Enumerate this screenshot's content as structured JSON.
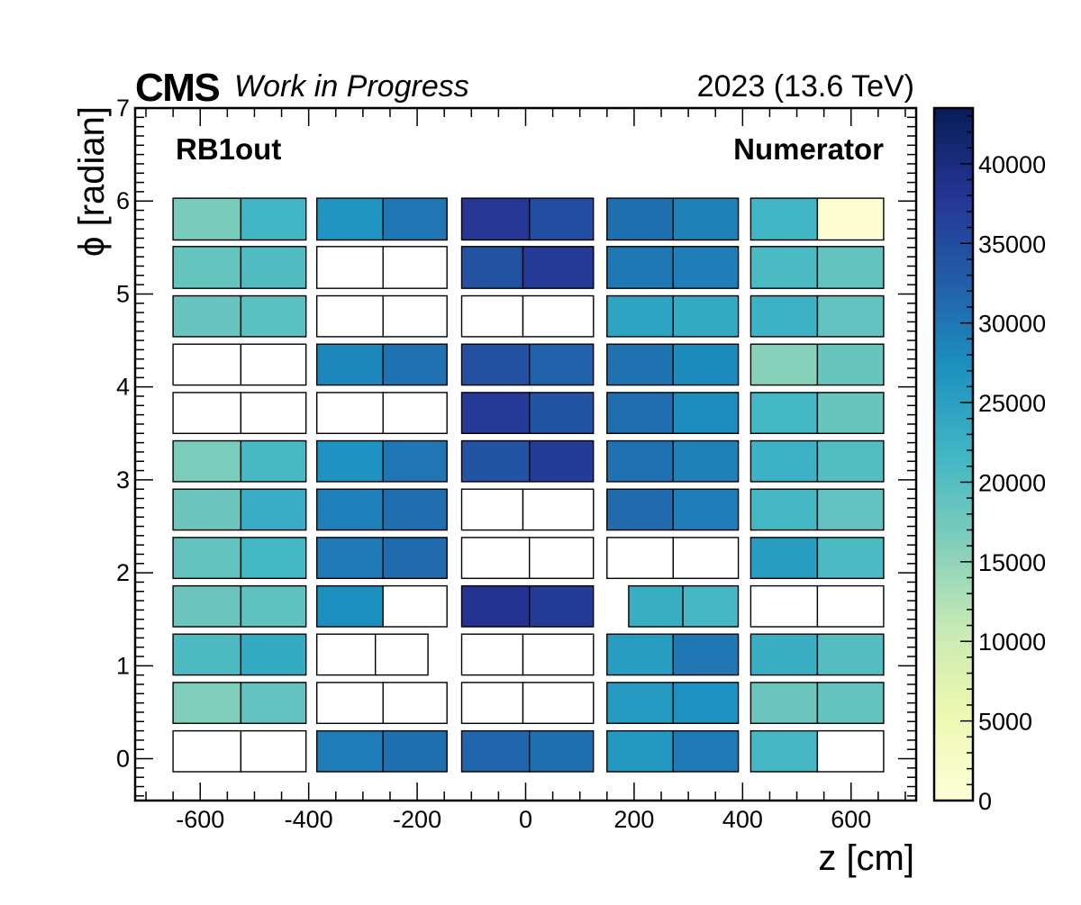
{
  "chart_data": {
    "type": "heatmap",
    "header": {
      "experiment": "CMS",
      "status": "Work in Progress",
      "run_info": "2023 (13.6 TeV)"
    },
    "labels": {
      "region": "RB1out",
      "quantity": "Numerator"
    },
    "xlabel": "z [cm]",
    "ylabel": "ϕ [radian]",
    "xlim": [
      -720,
      720
    ],
    "ylim": [
      -0.45,
      7
    ],
    "x_ticks": [
      -600,
      -400,
      -200,
      0,
      200,
      400,
      600
    ],
    "y_ticks": [
      0,
      1,
      2,
      3,
      4,
      5,
      6,
      7
    ],
    "colorbar": {
      "range": [
        0,
        43500
      ],
      "ticks": [
        0,
        5000,
        10000,
        15000,
        20000,
        25000,
        30000,
        35000,
        40000
      ],
      "colormap": "YlGnBu",
      "colormap_stops": [
        "#ffffd9",
        "#edf8b1",
        "#c7e9b4",
        "#7fcdbb",
        "#41b6c4",
        "#1d91c0",
        "#225ea8",
        "#253494",
        "#081d58"
      ]
    },
    "cells": [
      {
        "x": [
          -650,
          -525
        ],
        "y": [
          5.58,
          6.03
        ],
        "value": 16800
      },
      {
        "x": [
          -525,
          -405
        ],
        "y": [
          5.58,
          6.03
        ],
        "value": 21800
      },
      {
        "x": [
          -385,
          -263
        ],
        "y": [
          5.58,
          6.03
        ],
        "value": 26800
      },
      {
        "x": [
          -263,
          -145
        ],
        "y": [
          5.58,
          6.03
        ],
        "value": 30200
      },
      {
        "x": [
          -118,
          7
        ],
        "y": [
          5.58,
          6.03
        ],
        "value": 37800
      },
      {
        "x": [
          7,
          125
        ],
        "y": [
          5.58,
          6.03
        ],
        "value": 34800
      },
      {
        "x": [
          150,
          272
        ],
        "y": [
          5.58,
          6.03
        ],
        "value": 30700
      },
      {
        "x": [
          272,
          392
        ],
        "y": [
          5.58,
          6.03
        ],
        "value": 28900
      },
      {
        "x": [
          415,
          538
        ],
        "y": [
          5.58,
          6.03
        ],
        "value": 21700
      },
      {
        "x": [
          538,
          660
        ],
        "y": [
          5.58,
          6.03
        ],
        "value": 900
      },
      {
        "x": [
          -650,
          -525
        ],
        "y": [
          5.06,
          5.51
        ],
        "value": 18500
      },
      {
        "x": [
          -525,
          -405
        ],
        "y": [
          5.06,
          5.51
        ],
        "value": 20400
      },
      {
        "x": [
          -385,
          -263
        ],
        "y": [
          5.06,
          5.51
        ],
        "value": null
      },
      {
        "x": [
          -263,
          -145
        ],
        "y": [
          5.06,
          5.51
        ],
        "value": null
      },
      {
        "x": [
          -118,
          -5
        ],
        "y": [
          5.06,
          5.51
        ],
        "value": 34200
      },
      {
        "x": [
          -5,
          125
        ],
        "y": [
          5.06,
          5.51
        ],
        "value": 37400
      },
      {
        "x": [
          150,
          272
        ],
        "y": [
          5.06,
          5.51
        ],
        "value": 29800
      },
      {
        "x": [
          272,
          392
        ],
        "y": [
          5.06,
          5.51
        ],
        "value": 29200
      },
      {
        "x": [
          415,
          538
        ],
        "y": [
          5.06,
          5.51
        ],
        "value": 20900
      },
      {
        "x": [
          538,
          660
        ],
        "y": [
          5.06,
          5.51
        ],
        "value": 18600
      },
      {
        "x": [
          -650,
          -525
        ],
        "y": [
          4.54,
          4.98
        ],
        "value": 18400
      },
      {
        "x": [
          -525,
          -405
        ],
        "y": [
          4.54,
          4.98
        ],
        "value": 19500
      },
      {
        "x": [
          -385,
          -263
        ],
        "y": [
          4.54,
          4.98
        ],
        "value": null
      },
      {
        "x": [
          -263,
          -145
        ],
        "y": [
          4.54,
          4.98
        ],
        "value": null
      },
      {
        "x": [
          -118,
          -5
        ],
        "y": [
          4.54,
          4.98
        ],
        "value": null
      },
      {
        "x": [
          -5,
          125
        ],
        "y": [
          4.54,
          4.98
        ],
        "value": null
      },
      {
        "x": [
          150,
          272
        ],
        "y": [
          4.54,
          4.98
        ],
        "value": 24500
      },
      {
        "x": [
          272,
          392
        ],
        "y": [
          4.54,
          4.98
        ],
        "value": 23500
      },
      {
        "x": [
          415,
          538
        ],
        "y": [
          4.54,
          4.98
        ],
        "value": 22300
      },
      {
        "x": [
          538,
          660
        ],
        "y": [
          4.54,
          4.98
        ],
        "value": 18900
      },
      {
        "x": [
          -650,
          -525
        ],
        "y": [
          4.02,
          4.46
        ],
        "value": null
      },
      {
        "x": [
          -525,
          -405
        ],
        "y": [
          4.02,
          4.46
        ],
        "value": null
      },
      {
        "x": [
          -385,
          -263
        ],
        "y": [
          4.02,
          4.46
        ],
        "value": 28300
      },
      {
        "x": [
          -263,
          -145
        ],
        "y": [
          4.02,
          4.46
        ],
        "value": 30600
      },
      {
        "x": [
          -118,
          7
        ],
        "y": [
          4.02,
          4.46
        ],
        "value": 34500
      },
      {
        "x": [
          7,
          125
        ],
        "y": [
          4.02,
          4.46
        ],
        "value": 32300
      },
      {
        "x": [
          150,
          272
        ],
        "y": [
          4.02,
          4.46
        ],
        "value": 30500
      },
      {
        "x": [
          272,
          392
        ],
        "y": [
          4.02,
          4.46
        ],
        "value": 27800
      },
      {
        "x": [
          415,
          538
        ],
        "y": [
          4.02,
          4.46
        ],
        "value": 15600
      },
      {
        "x": [
          538,
          660
        ],
        "y": [
          4.02,
          4.46
        ],
        "value": 18300
      },
      {
        "x": [
          -650,
          -525
        ],
        "y": [
          3.5,
          3.94
        ],
        "value": null
      },
      {
        "x": [
          -525,
          -405
        ],
        "y": [
          3.5,
          3.94
        ],
        "value": null
      },
      {
        "x": [
          -385,
          -263
        ],
        "y": [
          3.5,
          3.94
        ],
        "value": null
      },
      {
        "x": [
          -263,
          -145
        ],
        "y": [
          3.5,
          3.94
        ],
        "value": null
      },
      {
        "x": [
          -118,
          7
        ],
        "y": [
          3.5,
          3.94
        ],
        "value": 37200
      },
      {
        "x": [
          7,
          125
        ],
        "y": [
          3.5,
          3.94
        ],
        "value": 34100
      },
      {
        "x": [
          150,
          272
        ],
        "y": [
          3.5,
          3.94
        ],
        "value": 30900
      },
      {
        "x": [
          272,
          392
        ],
        "y": [
          3.5,
          3.94
        ],
        "value": 27600
      },
      {
        "x": [
          415,
          538
        ],
        "y": [
          3.5,
          3.94
        ],
        "value": 21600
      },
      {
        "x": [
          538,
          660
        ],
        "y": [
          3.5,
          3.94
        ],
        "value": 18300
      },
      {
        "x": [
          -650,
          -525
        ],
        "y": [
          2.98,
          3.42
        ],
        "value": 16600
      },
      {
        "x": [
          -525,
          -405
        ],
        "y": [
          2.98,
          3.42
        ],
        "value": 21100
      },
      {
        "x": [
          -385,
          -263
        ],
        "y": [
          2.98,
          3.42
        ],
        "value": 27000
      },
      {
        "x": [
          -263,
          -145
        ],
        "y": [
          2.98,
          3.42
        ],
        "value": 30200
      },
      {
        "x": [
          -118,
          7
        ],
        "y": [
          2.98,
          3.42
        ],
        "value": 34100
      },
      {
        "x": [
          7,
          125
        ],
        "y": [
          2.98,
          3.42
        ],
        "value": 37100
      },
      {
        "x": [
          150,
          272
        ],
        "y": [
          2.98,
          3.42
        ],
        "value": 30600
      },
      {
        "x": [
          272,
          392
        ],
        "y": [
          2.98,
          3.42
        ],
        "value": 28900
      },
      {
        "x": [
          415,
          538
        ],
        "y": [
          2.98,
          3.42
        ],
        "value": 22400
      },
      {
        "x": [
          538,
          660
        ],
        "y": [
          2.98,
          3.42
        ],
        "value": 20200
      },
      {
        "x": [
          -650,
          -525
        ],
        "y": [
          2.46,
          2.9
        ],
        "value": 17900
      },
      {
        "x": [
          -525,
          -405
        ],
        "y": [
          2.46,
          2.9
        ],
        "value": 23100
      },
      {
        "x": [
          -385,
          -263
        ],
        "y": [
          2.46,
          2.9
        ],
        "value": 29100
      },
      {
        "x": [
          -263,
          -145
        ],
        "y": [
          2.46,
          2.9
        ],
        "value": 30900
      },
      {
        "x": [
          -118,
          -5
        ],
        "y": [
          2.46,
          2.9
        ],
        "value": null
      },
      {
        "x": [
          -5,
          125
        ],
        "y": [
          2.46,
          2.9
        ],
        "value": null
      },
      {
        "x": [
          150,
          272
        ],
        "y": [
          2.46,
          2.9
        ],
        "value": 31200
      },
      {
        "x": [
          272,
          392
        ],
        "y": [
          2.46,
          2.9
        ],
        "value": 29400
      },
      {
        "x": [
          415,
          538
        ],
        "y": [
          2.46,
          2.9
        ],
        "value": 21400
      },
      {
        "x": [
          538,
          660
        ],
        "y": [
          2.46,
          2.9
        ],
        "value": 18800
      },
      {
        "x": [
          -650,
          -525
        ],
        "y": [
          1.94,
          2.38
        ],
        "value": 18700
      },
      {
        "x": [
          -525,
          -405
        ],
        "y": [
          1.94,
          2.38
        ],
        "value": 21600
      },
      {
        "x": [
          -385,
          -263
        ],
        "y": [
          1.94,
          2.38
        ],
        "value": 29600
      },
      {
        "x": [
          -263,
          -145
        ],
        "y": [
          1.94,
          2.38
        ],
        "value": 31300
      },
      {
        "x": [
          -118,
          7
        ],
        "y": [
          1.94,
          2.38
        ],
        "value": null
      },
      {
        "x": [
          7,
          125
        ],
        "y": [
          1.94,
          2.38
        ],
        "value": null
      },
      {
        "x": [
          150,
          272
        ],
        "y": [
          1.94,
          2.38
        ],
        "value": null
      },
      {
        "x": [
          272,
          392
        ],
        "y": [
          1.94,
          2.38
        ],
        "value": null
      },
      {
        "x": [
          415,
          538
        ],
        "y": [
          1.94,
          2.38
        ],
        "value": 25500
      },
      {
        "x": [
          538,
          660
        ],
        "y": [
          1.94,
          2.38
        ],
        "value": 20900
      },
      {
        "x": [
          -650,
          -525
        ],
        "y": [
          1.42,
          1.86
        ],
        "value": 18100
      },
      {
        "x": [
          -525,
          -405
        ],
        "y": [
          1.42,
          1.86
        ],
        "value": 19000
      },
      {
        "x": [
          -385,
          -263
        ],
        "y": [
          1.42,
          1.86
        ],
        "value": 27400
      },
      {
        "x": [
          -263,
          -145
        ],
        "y": [
          1.42,
          1.86
        ],
        "value": null
      },
      {
        "x": [
          -118,
          7
        ],
        "y": [
          1.42,
          1.86
        ],
        "value": 38200
      },
      {
        "x": [
          7,
          125
        ],
        "y": [
          1.42,
          1.86
        ],
        "value": 37000
      },
      {
        "x": [
          190,
          290
        ],
        "y": [
          1.42,
          1.86
        ],
        "value": 22900
      },
      {
        "x": [
          290,
          392
        ],
        "y": [
          1.42,
          1.86
        ],
        "value": 21200
      },
      {
        "x": [
          415,
          538
        ],
        "y": [
          1.42,
          1.86
        ],
        "value": null
      },
      {
        "x": [
          538,
          660
        ],
        "y": [
          1.42,
          1.86
        ],
        "value": null
      },
      {
        "x": [
          -650,
          -525
        ],
        "y": [
          0.9,
          1.34
        ],
        "value": 20600
      },
      {
        "x": [
          -525,
          -405
        ],
        "y": [
          0.9,
          1.34
        ],
        "value": 23500
      },
      {
        "x": [
          -385,
          -277
        ],
        "y": [
          0.9,
          1.34
        ],
        "value": null
      },
      {
        "x": [
          -277,
          -180
        ],
        "y": [
          0.9,
          1.34
        ],
        "value": null
      },
      {
        "x": [
          -118,
          -5
        ],
        "y": [
          0.9,
          1.34
        ],
        "value": null
      },
      {
        "x": [
          -5,
          125
        ],
        "y": [
          0.9,
          1.34
        ],
        "value": null
      },
      {
        "x": [
          150,
          272
        ],
        "y": [
          0.9,
          1.34
        ],
        "value": 25600
      },
      {
        "x": [
          272,
          392
        ],
        "y": [
          0.9,
          1.34
        ],
        "value": 30000
      },
      {
        "x": [
          415,
          538
        ],
        "y": [
          0.9,
          1.34
        ],
        "value": 22800
      },
      {
        "x": [
          538,
          660
        ],
        "y": [
          0.9,
          1.34
        ],
        "value": 20000
      },
      {
        "x": [
          -650,
          -525
        ],
        "y": [
          0.38,
          0.82
        ],
        "value": 16300
      },
      {
        "x": [
          -525,
          -405
        ],
        "y": [
          0.38,
          0.82
        ],
        "value": 18800
      },
      {
        "x": [
          -385,
          -263
        ],
        "y": [
          0.38,
          0.82
        ],
        "value": null
      },
      {
        "x": [
          -263,
          -145
        ],
        "y": [
          0.38,
          0.82
        ],
        "value": null
      },
      {
        "x": [
          -118,
          -5
        ],
        "y": [
          0.38,
          0.82
        ],
        "value": null
      },
      {
        "x": [
          -5,
          125
        ],
        "y": [
          0.38,
          0.82
        ],
        "value": null
      },
      {
        "x": [
          150,
          272
        ],
        "y": [
          0.38,
          0.82
        ],
        "value": 25800
      },
      {
        "x": [
          272,
          392
        ],
        "y": [
          0.38,
          0.82
        ],
        "value": 27200
      },
      {
        "x": [
          415,
          538
        ],
        "y": [
          0.38,
          0.82
        ],
        "value": 18000
      },
      {
        "x": [
          538,
          660
        ],
        "y": [
          0.38,
          0.82
        ],
        "value": 18700
      },
      {
        "x": [
          -650,
          -525
        ],
        "y": [
          -0.14,
          0.3
        ],
        "value": null
      },
      {
        "x": [
          -525,
          -405
        ],
        "y": [
          -0.14,
          0.3
        ],
        "value": null
      },
      {
        "x": [
          -385,
          -263
        ],
        "y": [
          -0.14,
          0.3
        ],
        "value": 29400
      },
      {
        "x": [
          -263,
          -145
        ],
        "y": [
          -0.14,
          0.3
        ],
        "value": 30700
      },
      {
        "x": [
          -118,
          7
        ],
        "y": [
          -0.14,
          0.3
        ],
        "value": 31800
      },
      {
        "x": [
          7,
          125
        ],
        "y": [
          -0.14,
          0.3
        ],
        "value": 30700
      },
      {
        "x": [
          150,
          272
        ],
        "y": [
          -0.14,
          0.3
        ],
        "value": 26200
      },
      {
        "x": [
          272,
          392
        ],
        "y": [
          -0.14,
          0.3
        ],
        "value": 29600
      },
      {
        "x": [
          415,
          538
        ],
        "y": [
          -0.14,
          0.3
        ],
        "value": 21200
      },
      {
        "x": [
          538,
          660
        ],
        "y": [
          -0.14,
          0.3
        ],
        "value": null
      }
    ]
  }
}
